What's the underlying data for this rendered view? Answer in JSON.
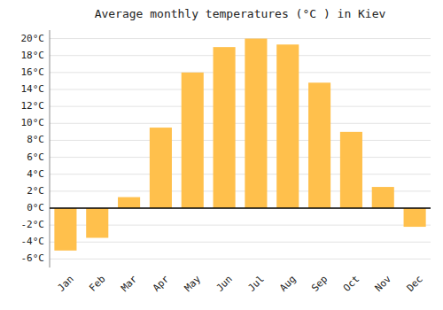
{
  "chart_data": {
    "type": "bar",
    "title": "Average monthly temperatures (°C ) in Kiev",
    "categories": [
      "Jan",
      "Feb",
      "Mar",
      "Apr",
      "May",
      "Jun",
      "Jul",
      "Aug",
      "Sep",
      "Oct",
      "Nov",
      "Dec"
    ],
    "values": [
      -5.0,
      -3.5,
      1.3,
      9.5,
      16.0,
      19.0,
      20.0,
      19.3,
      14.8,
      9.0,
      2.5,
      -2.2
    ],
    "color": "#FFC04C",
    "ylim": [
      -7,
      21
    ],
    "yticks": [
      {
        "value": -6,
        "label": "-6°C"
      },
      {
        "value": -4,
        "label": "-4°C"
      },
      {
        "value": -2,
        "label": "-2°C"
      },
      {
        "value": 0,
        "label": "0°C"
      },
      {
        "value": 2,
        "label": "2°C"
      },
      {
        "value": 4,
        "label": "4°C"
      },
      {
        "value": 6,
        "label": "6°C"
      },
      {
        "value": 8,
        "label": "8°C"
      },
      {
        "value": 10,
        "label": "10°C"
      },
      {
        "value": 12,
        "label": "12°C"
      },
      {
        "value": 14,
        "label": "14°C"
      },
      {
        "value": 16,
        "label": "16°C"
      },
      {
        "value": 18,
        "label": "18°C"
      },
      {
        "value": 20,
        "label": "20°C"
      }
    ],
    "grid": true
  }
}
